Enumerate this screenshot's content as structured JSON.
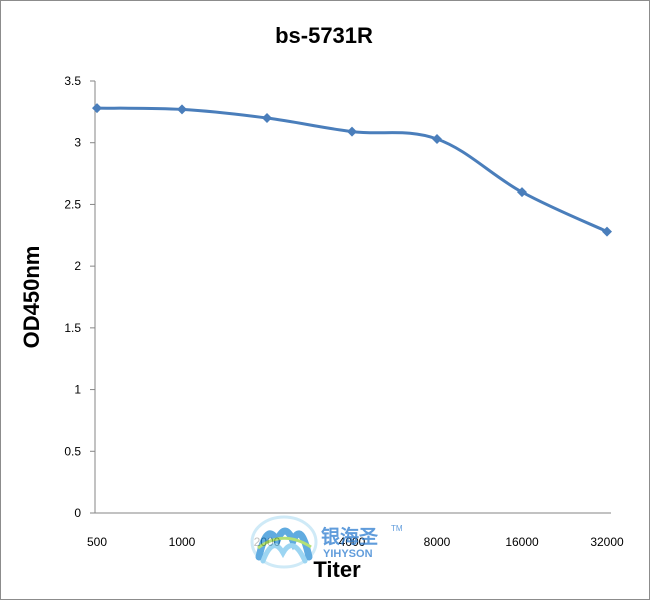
{
  "chart_data": {
    "type": "line",
    "title": "bs-5731R",
    "xlabel": "Titer",
    "ylabel": "OD450nm",
    "categories": [
      "500",
      "1000",
      "2000",
      "4000",
      "8000",
      "16000",
      "32000"
    ],
    "series": [
      {
        "values": [
          3.28,
          3.27,
          3.2,
          3.09,
          3.03,
          2.6,
          2.28
        ]
      }
    ],
    "ylim": [
      0,
      3.5
    ],
    "yticks": [
      "0",
      "0.5",
      "1",
      "1.5",
      "2",
      "2.5",
      "3",
      "3.5"
    ],
    "grid": false,
    "legend": "none",
    "colors": {
      "series": "#4a7ebb",
      "axis": "#868686"
    }
  },
  "watermark": {
    "brand_cn": "银海圣",
    "brand_en": "YIHYSON",
    "tm": "TM"
  }
}
